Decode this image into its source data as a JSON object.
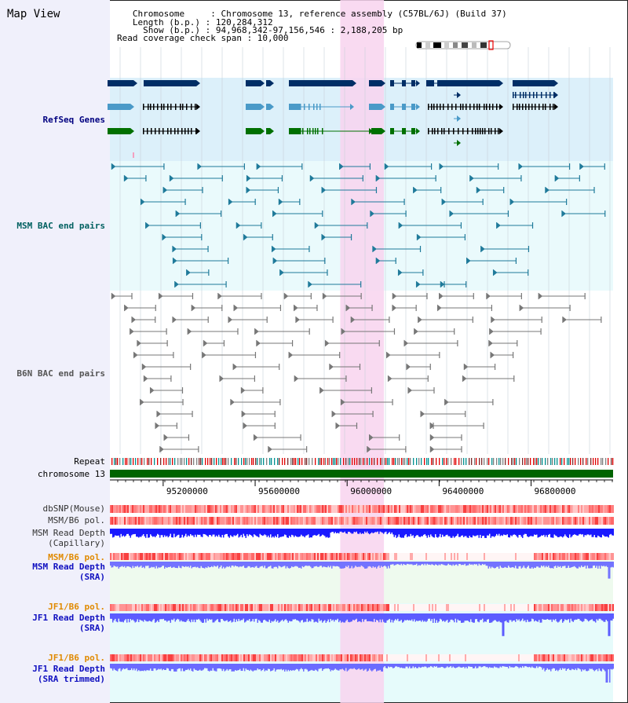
{
  "title": "Map View",
  "info": {
    "chromosome": "   Chromosome     : Chromosome 13, reference assembly (C57BL/6J) (Build 37)",
    "length": "   Length (b.p.) : 120,284,312",
    "show": "     Show (b.p.) : 94,968,342-97,156,546 : 2,188,205 bp",
    "coverage": "Read coverage check span : 10,000"
  },
  "region": {
    "start": 94968342,
    "end": 97156546
  },
  "highlight": {
    "start": 95970000,
    "end": 96160000,
    "color": "#f8d4ee"
  },
  "axis": {
    "ticks": [
      95200000,
      95600000,
      96000000,
      96400000,
      96800000
    ]
  },
  "tracks": {
    "refseq": {
      "label": "RefSeq Genes"
    },
    "msm_bac": {
      "label": "MSM BAC end pairs"
    },
    "b6n_bac": {
      "label": "B6N BAC end pairs"
    },
    "repeat": {
      "label": "Repeat"
    },
    "chromosome": {
      "label": "chromosome 13"
    },
    "dbsnp": {
      "label": "dbSNP(Mouse)"
    },
    "msm_pol": {
      "label": "MSM/B6 pol."
    },
    "msm_cap": {
      "label": "MSM Read Depth",
      "sub": "(Capillary)"
    },
    "msm_pol2": {
      "label": "MSM/B6 pol."
    },
    "msm_sra": {
      "label": "MSM Read Depth",
      "sub": "(SRA)"
    },
    "jf1_pol": {
      "label": "JF1/B6 pol."
    },
    "jf1_sra": {
      "label": "JF1 Read Depth",
      "sub": "(SRA)"
    },
    "jf1_pol2": {
      "label": "JF1/B6 pol."
    },
    "jf1_trim": {
      "label": "JF1 Read Depth",
      "sub": "(SRA trimmed)"
    }
  },
  "colors": {
    "refseq_bg": "#dcf0fa",
    "bac_bg": "#eafafc",
    "sra_bg": "#eefaee",
    "jf1_bg": "#e6fbfb",
    "navy": "#002e66",
    "steel": "#4a9ac8",
    "green": "#007000",
    "teal": "#1f7a9a",
    "gray": "#777777",
    "chrom": "#006400",
    "depth_blue": "#1a1aff",
    "depth_light": "#7070ff"
  }
}
